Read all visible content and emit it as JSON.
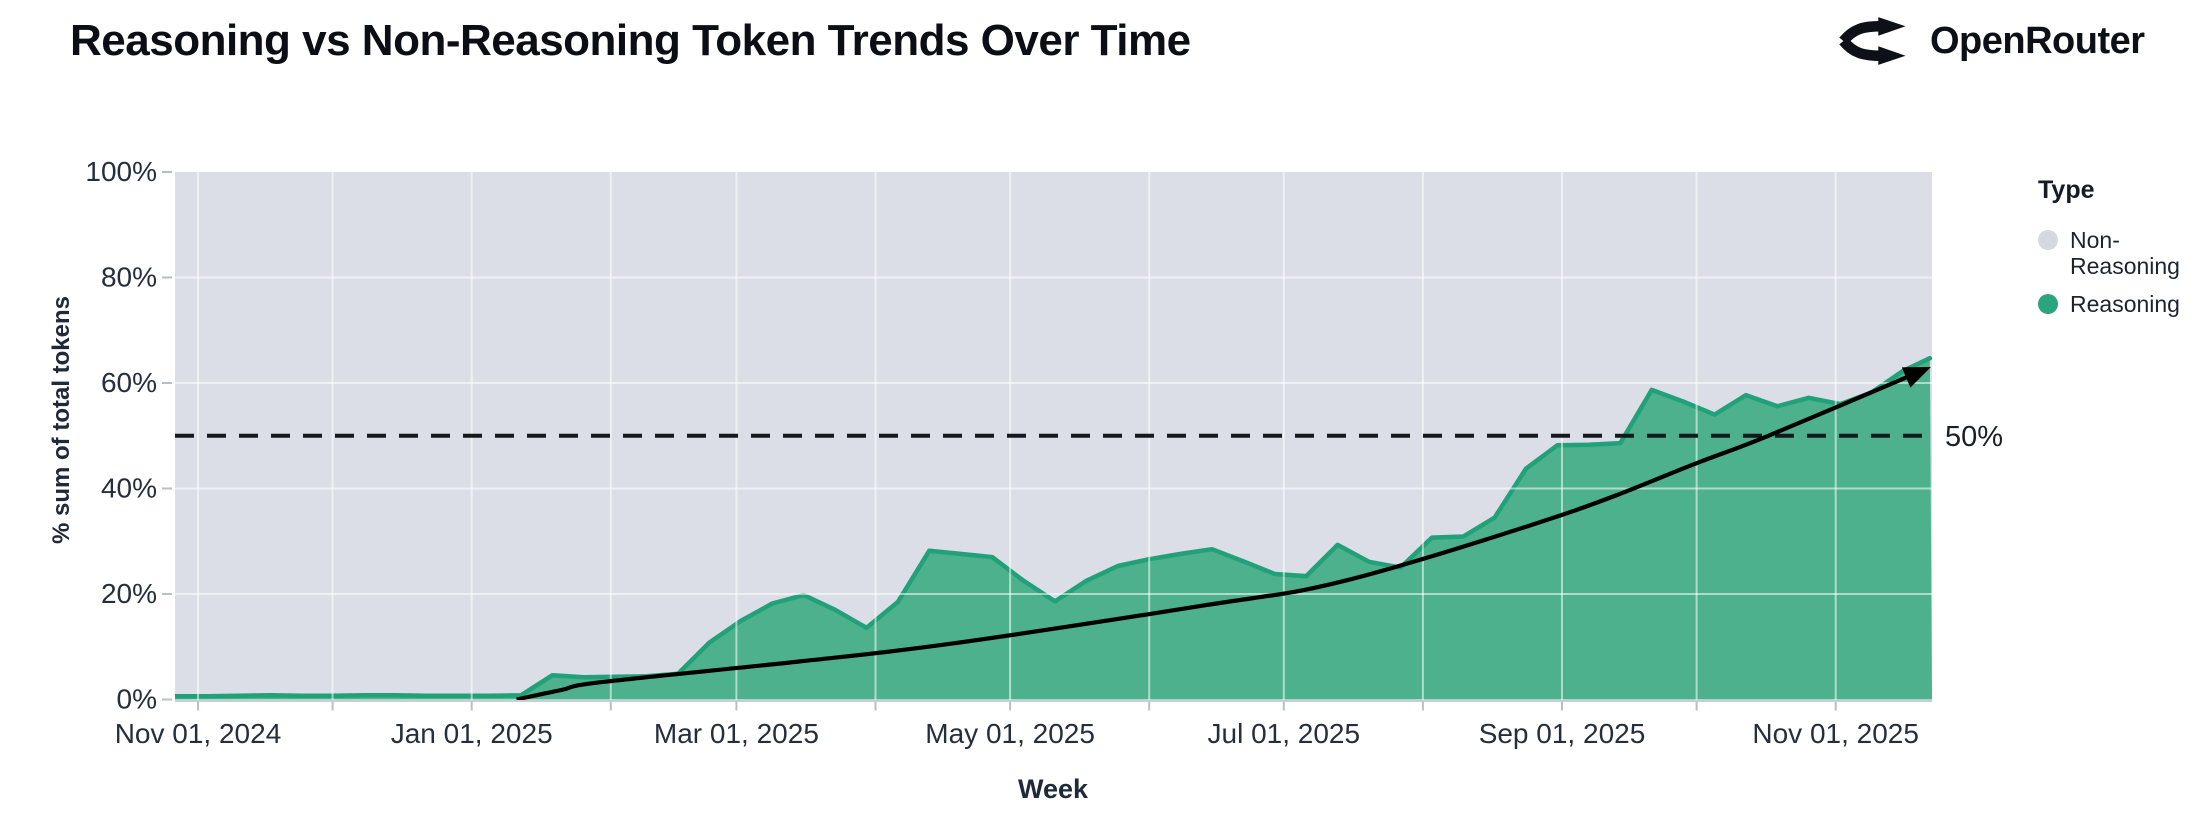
{
  "header": {
    "title": "Reasoning vs Non-Reasoning Token Trends Over Time",
    "brand_name": "OpenRouter"
  },
  "chart_data": {
    "type": "area",
    "stacking": "percent",
    "title": "Reasoning vs Non-Reasoning Token Trends Over Time",
    "xlabel": "Week",
    "ylabel": "% sum of total tokens",
    "x_axis": {
      "start": "2024-10-27",
      "end": "2025-11-23",
      "tick_dates": [
        "2024-11-01",
        "2025-01-01",
        "2025-03-01",
        "2025-05-01",
        "2025-07-01",
        "2025-09-01",
        "2025-11-01"
      ],
      "tick_labels": [
        "Nov 01, 2024",
        "Jan 01, 2025",
        "Mar 01, 2025",
        "May 01, 2025",
        "Jul 01, 2025",
        "Sep 01, 2025",
        "Nov 01, 2025"
      ],
      "minor_tick_interval": "month"
    },
    "y_axis": {
      "min": 0,
      "max": 100,
      "tick_values": [
        0,
        20,
        40,
        60,
        80,
        100
      ],
      "tick_labels": [
        "0%",
        "20%",
        "40%",
        "60%",
        "80%",
        "100%"
      ]
    },
    "legend": {
      "title": "Type",
      "position": "right",
      "items": [
        {
          "label": "Non-Reasoning",
          "color": "#D6D8DF"
        },
        {
          "label": "Reasoning",
          "color": "#2CA47D"
        }
      ]
    },
    "grid": {
      "vertical": "monthly",
      "horizontal": "every 20%",
      "color": "rgba(255,255,255,0.55)"
    },
    "series": [
      {
        "name": "Reasoning",
        "fill_color": "#4DB18D",
        "line_color": "#21A179",
        "points": [
          {
            "date": "2024-11-03",
            "pct": 0.6
          },
          {
            "date": "2024-11-10",
            "pct": 0.7
          },
          {
            "date": "2024-11-17",
            "pct": 0.8
          },
          {
            "date": "2024-11-24",
            "pct": 0.7
          },
          {
            "date": "2024-12-01",
            "pct": 0.7
          },
          {
            "date": "2024-12-08",
            "pct": 0.8
          },
          {
            "date": "2024-12-15",
            "pct": 0.8
          },
          {
            "date": "2024-12-22",
            "pct": 0.7
          },
          {
            "date": "2024-12-29",
            "pct": 0.7
          },
          {
            "date": "2025-01-05",
            "pct": 0.7
          },
          {
            "date": "2025-01-12",
            "pct": 0.8
          },
          {
            "date": "2025-01-19",
            "pct": 4.6
          },
          {
            "date": "2025-01-26",
            "pct": 4.2
          },
          {
            "date": "2025-02-02",
            "pct": 4.3
          },
          {
            "date": "2025-02-09",
            "pct": 4.4
          },
          {
            "date": "2025-02-16",
            "pct": 4.9
          },
          {
            "date": "2025-02-23",
            "pct": 10.8
          },
          {
            "date": "2025-03-02",
            "pct": 14.9
          },
          {
            "date": "2025-03-09",
            "pct": 18.2
          },
          {
            "date": "2025-03-16",
            "pct": 19.8
          },
          {
            "date": "2025-03-23",
            "pct": 17.0
          },
          {
            "date": "2025-03-30",
            "pct": 13.6
          },
          {
            "date": "2025-04-06",
            "pct": 18.5
          },
          {
            "date": "2025-04-13",
            "pct": 28.2
          },
          {
            "date": "2025-04-20",
            "pct": 27.6
          },
          {
            "date": "2025-04-27",
            "pct": 27.0
          },
          {
            "date": "2025-05-04",
            "pct": 22.5
          },
          {
            "date": "2025-05-11",
            "pct": 18.6
          },
          {
            "date": "2025-05-18",
            "pct": 22.5
          },
          {
            "date": "2025-05-25",
            "pct": 25.3
          },
          {
            "date": "2025-06-01",
            "pct": 26.6
          },
          {
            "date": "2025-06-08",
            "pct": 27.6
          },
          {
            "date": "2025-06-15",
            "pct": 28.5
          },
          {
            "date": "2025-06-22",
            "pct": 26.2
          },
          {
            "date": "2025-06-29",
            "pct": 23.8
          },
          {
            "date": "2025-07-06",
            "pct": 23.4
          },
          {
            "date": "2025-07-13",
            "pct": 29.3
          },
          {
            "date": "2025-07-20",
            "pct": 26.1
          },
          {
            "date": "2025-07-27",
            "pct": 25.0
          },
          {
            "date": "2025-08-03",
            "pct": 30.7
          },
          {
            "date": "2025-08-10",
            "pct": 30.9
          },
          {
            "date": "2025-08-17",
            "pct": 34.5
          },
          {
            "date": "2025-08-24",
            "pct": 43.8
          },
          {
            "date": "2025-08-31",
            "pct": 48.2
          },
          {
            "date": "2025-09-07",
            "pct": 48.3
          },
          {
            "date": "2025-09-14",
            "pct": 48.6
          },
          {
            "date": "2025-09-21",
            "pct": 58.7
          },
          {
            "date": "2025-09-28",
            "pct": 56.5
          },
          {
            "date": "2025-10-05",
            "pct": 54.0
          },
          {
            "date": "2025-10-12",
            "pct": 57.7
          },
          {
            "date": "2025-10-19",
            "pct": 55.6
          },
          {
            "date": "2025-10-26",
            "pct": 57.2
          },
          {
            "date": "2025-11-02",
            "pct": 56.0
          },
          {
            "date": "2025-11-09",
            "pct": 58.2
          },
          {
            "date": "2025-11-16",
            "pct": 62.3
          },
          {
            "date": "2025-11-22",
            "pct": 64.7
          }
        ]
      },
      {
        "name": "Non-Reasoning",
        "fill_color": "#DBDEE6",
        "note": "remainder of stack up to 100%"
      }
    ],
    "annotations": {
      "reference_line": {
        "value": 50,
        "label": "50%",
        "style": "dashed",
        "color": "#15181d"
      },
      "trend_arrow": {
        "style": "curved-arrow",
        "color": "#000000",
        "anchors": [
          {
            "date": "2025-01-11",
            "pct": 0
          },
          {
            "date": "2025-01-21",
            "pct": 1.8
          },
          {
            "date": "2025-01-30",
            "pct": 3.3
          },
          {
            "date": "2025-03-15",
            "pct": 7.2
          },
          {
            "date": "2025-04-18",
            "pct": 10.6
          },
          {
            "date": "2025-06-13",
            "pct": 17.8
          },
          {
            "date": "2025-07-15",
            "pct": 22.6
          },
          {
            "date": "2025-09-01",
            "pct": 35.0
          },
          {
            "date": "2025-10-01",
            "pct": 44.8
          },
          {
            "date": "2025-10-17",
            "pct": 50.0
          },
          {
            "date": "2025-11-21",
            "pct": 62.6
          }
        ]
      }
    }
  }
}
